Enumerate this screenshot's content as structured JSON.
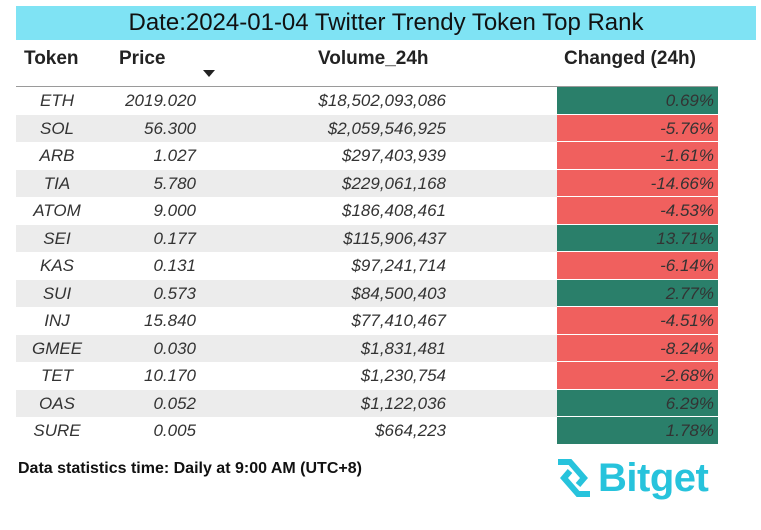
{
  "title": "Date:2024-01-04 Twitter Trendy Token Top Rank",
  "headers": {
    "token": "Token",
    "price": "Price",
    "volume": "Volume_24h",
    "change": "Changed (24h)"
  },
  "sort": {
    "column": "price",
    "direction": "descending",
    "icon": "sort-down-icon"
  },
  "colors": {
    "title_bg": "#7fe3f4",
    "positive": "#2a7f6a",
    "negative": "#f0605e",
    "alt_row": "#ececec",
    "brand": "#27c3dc"
  },
  "rows": [
    {
      "token": "ETH",
      "price": "2019.020",
      "volume": "$18,502,093,086",
      "change": "0.69%",
      "trend": "up"
    },
    {
      "token": "SOL",
      "price": "56.300",
      "volume": "$2,059,546,925",
      "change": "-5.76%",
      "trend": "down"
    },
    {
      "token": "ARB",
      "price": "1.027",
      "volume": "$297,403,939",
      "change": "-1.61%",
      "trend": "down"
    },
    {
      "token": "TIA",
      "price": "5.780",
      "volume": "$229,061,168",
      "change": "-14.66%",
      "trend": "down"
    },
    {
      "token": "ATOM",
      "price": "9.000",
      "volume": "$186,408,461",
      "change": "-4.53%",
      "trend": "down"
    },
    {
      "token": "SEI",
      "price": "0.177",
      "volume": "$115,906,437",
      "change": "13.71%",
      "trend": "up"
    },
    {
      "token": "KAS",
      "price": "0.131",
      "volume": "$97,241,714",
      "change": "-6.14%",
      "trend": "down"
    },
    {
      "token": "SUI",
      "price": "0.573",
      "volume": "$84,500,403",
      "change": "2.77%",
      "trend": "up"
    },
    {
      "token": "INJ",
      "price": "15.840",
      "volume": "$77,410,467",
      "change": "-4.51%",
      "trend": "down"
    },
    {
      "token": "GMEE",
      "price": "0.030",
      "volume": "$1,831,481",
      "change": "-8.24%",
      "trend": "down"
    },
    {
      "token": "TET",
      "price": "10.170",
      "volume": "$1,230,754",
      "change": "-2.68%",
      "trend": "down"
    },
    {
      "token": "OAS",
      "price": "0.052",
      "volume": "$1,122,036",
      "change": "6.29%",
      "trend": "up"
    },
    {
      "token": "SURE",
      "price": "0.005",
      "volume": "$664,223",
      "change": "1.78%",
      "trend": "up"
    }
  ],
  "footer": {
    "note": "Data statistics time: Daily at 9:00 AM (UTC+8)"
  },
  "logo": {
    "text": "Bitget",
    "icon": "bitget-logo-icon"
  }
}
